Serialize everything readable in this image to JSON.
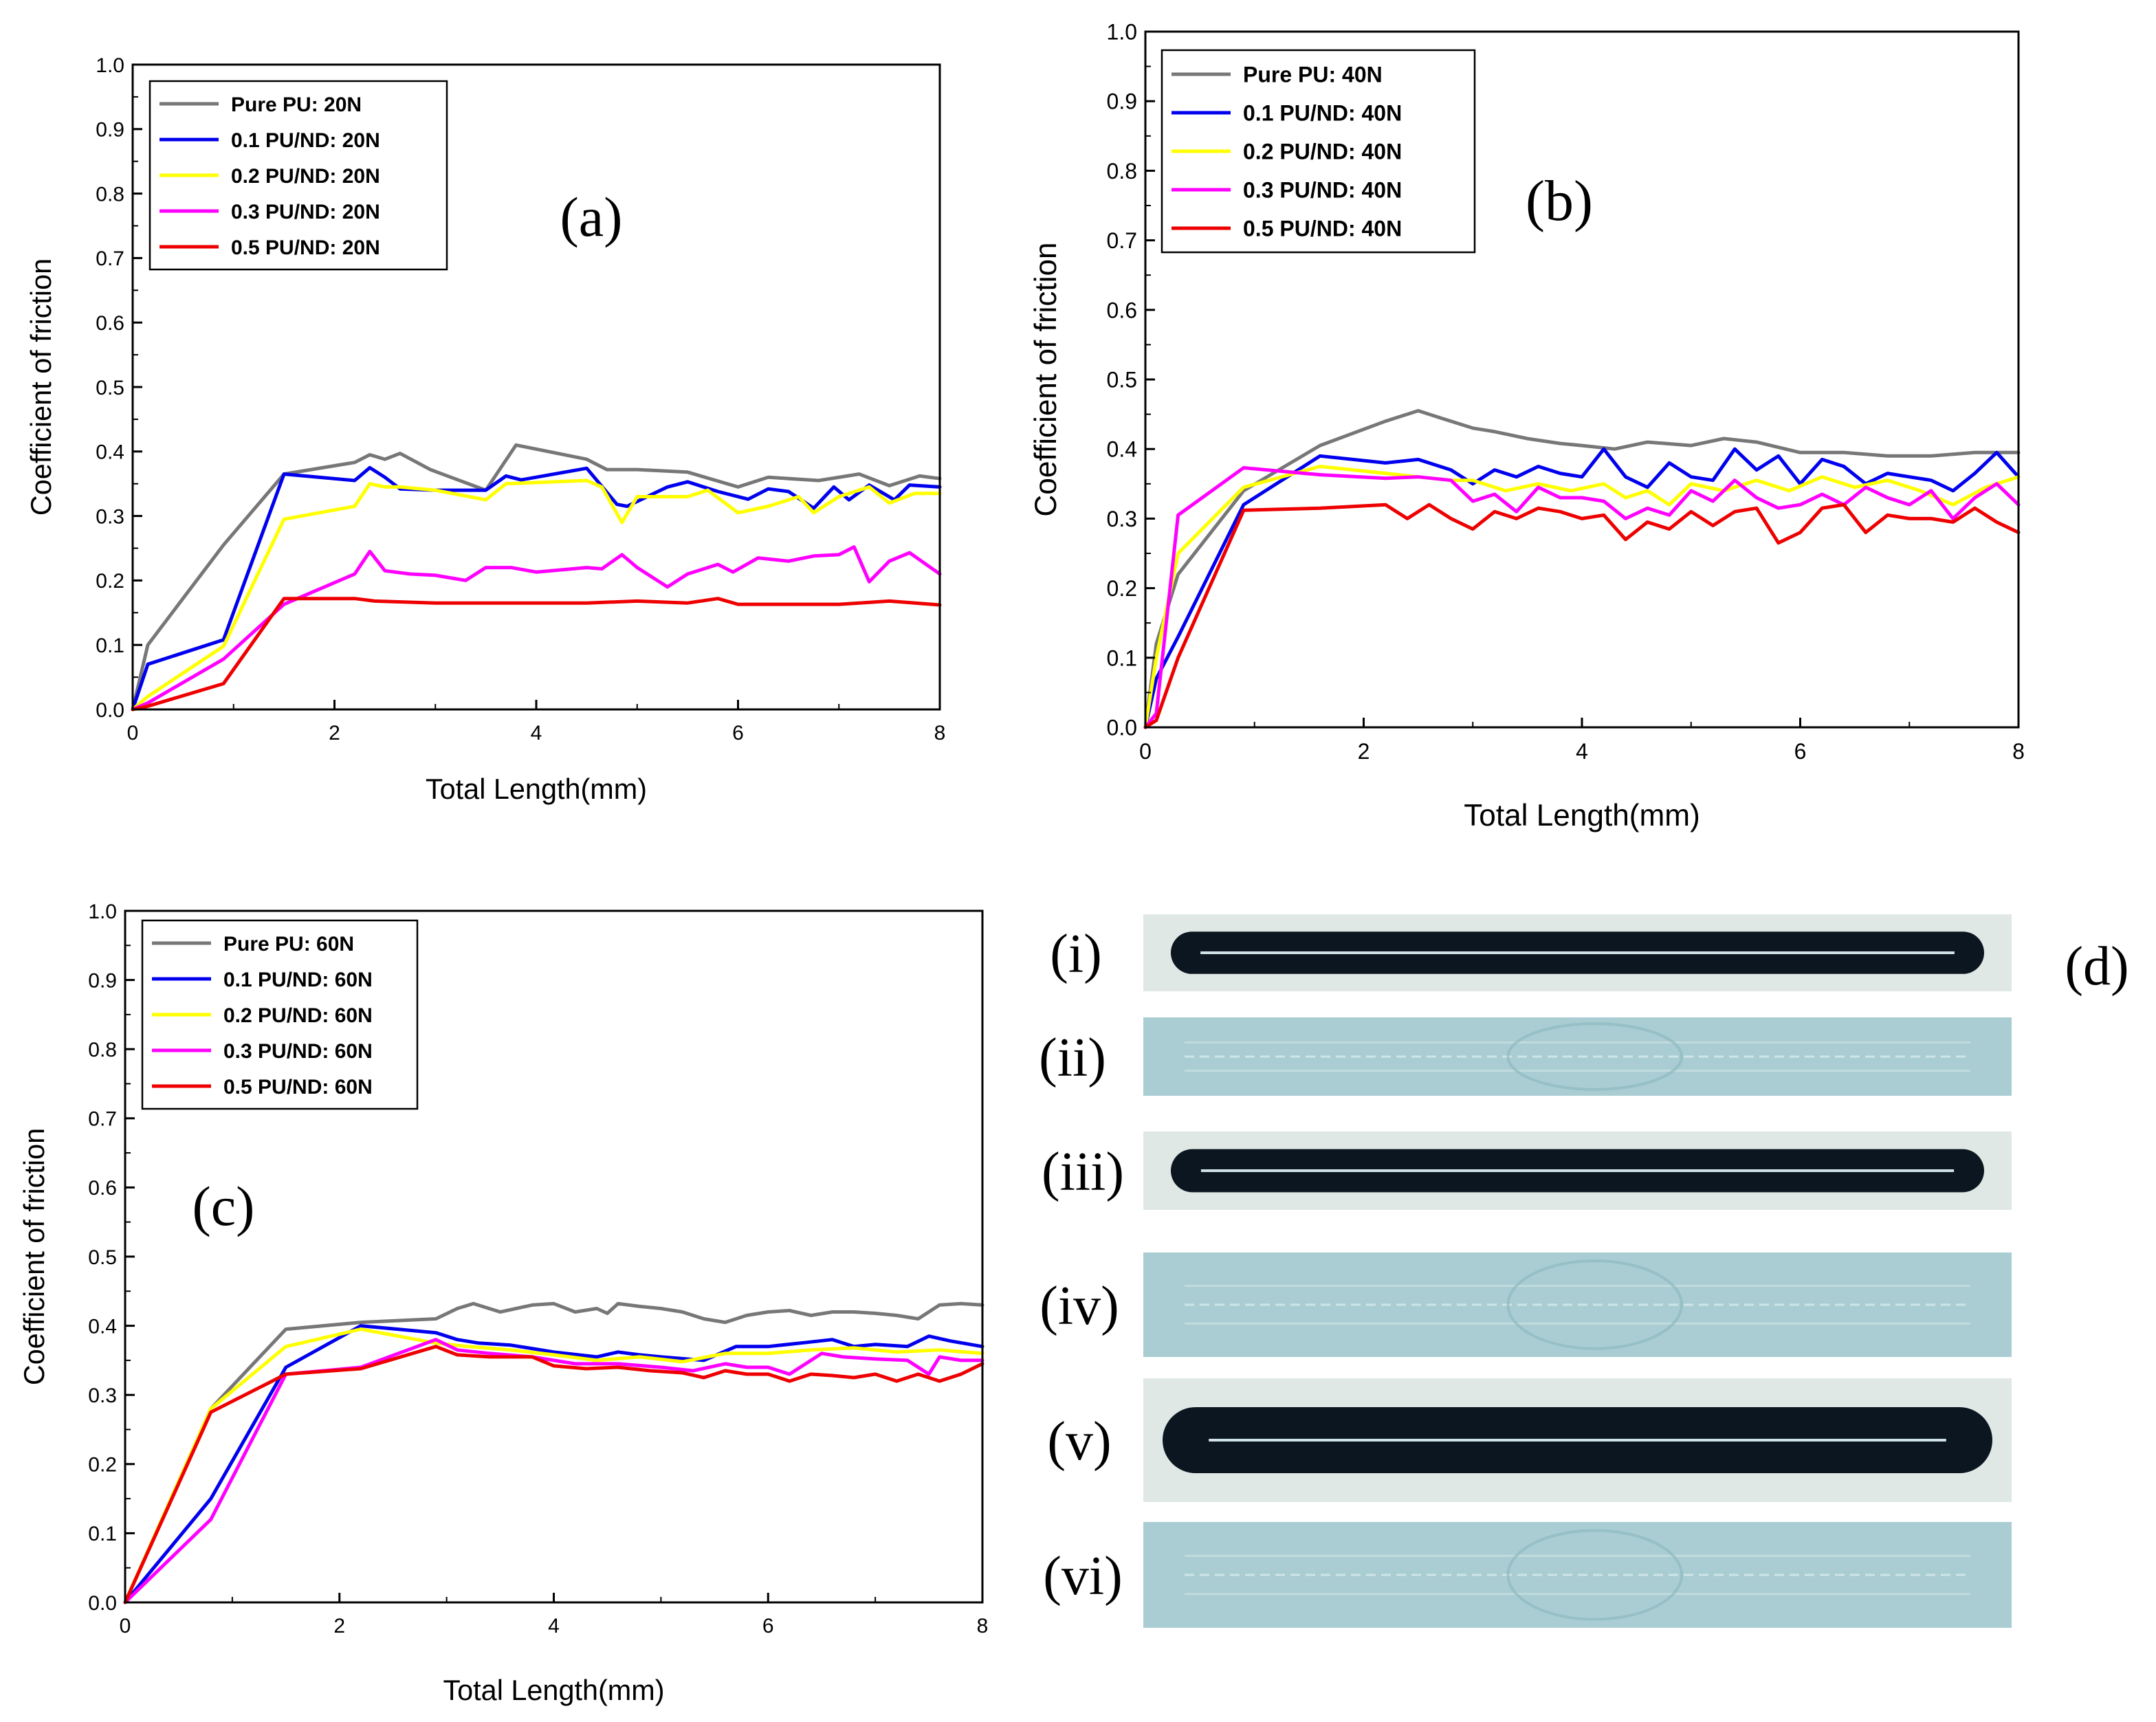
{
  "colors": {
    "pure": "#777777",
    "nd01": "#0000ee",
    "nd02": "#ffff00",
    "nd03": "#ff00ff",
    "nd05": "#ee0000",
    "axis": "#000000",
    "track_dark": "#0c1620",
    "strip_light": "#a9cdd2",
    "strip_dirty": "#dfe8e4"
  },
  "chart_data": [
    {
      "type": "line",
      "panel_label": "(a)",
      "xlabel": "Total Length(mm)",
      "ylabel": "Coefficient of friction",
      "xlim": [
        0,
        8
      ],
      "ylim": [
        0,
        1.0
      ],
      "x_ticks": [
        "0",
        "2",
        "4",
        "6",
        "8"
      ],
      "y_ticks": [
        "0.0",
        "0.1",
        "0.2",
        "0.3",
        "0.4",
        "0.5",
        "0.6",
        "0.7",
        "0.8",
        "0.9",
        "1.0"
      ],
      "legend_position": "top-left",
      "series": [
        {
          "name": "Pure PU: 20N",
          "color_key": "pure",
          "x": [
            0,
            0.15,
            0.9,
            1.5,
            2.2,
            2.35,
            2.5,
            2.65,
            2.95,
            3.5,
            3.8,
            4.5,
            4.7,
            5.0,
            5.5,
            6.0,
            6.3,
            6.8,
            7.2,
            7.5,
            7.8,
            8.0
          ],
          "y": [
            0.0,
            0.1,
            0.255,
            0.365,
            0.383,
            0.395,
            0.388,
            0.397,
            0.372,
            0.34,
            0.41,
            0.388,
            0.372,
            0.372,
            0.368,
            0.345,
            0.36,
            0.355,
            0.365,
            0.347,
            0.362,
            0.358
          ]
        },
        {
          "name": "0.1 PU/ND: 20N",
          "color_key": "nd01",
          "x": [
            0,
            0.15,
            0.9,
            1.5,
            2.2,
            2.35,
            2.5,
            2.65,
            3.0,
            3.5,
            3.7,
            3.85,
            4.5,
            4.8,
            4.9,
            5.3,
            5.5,
            5.8,
            6.1,
            6.3,
            6.5,
            6.75,
            6.95,
            7.1,
            7.3,
            7.55,
            7.7,
            8.0
          ],
          "y": [
            0.0,
            0.07,
            0.108,
            0.365,
            0.355,
            0.375,
            0.36,
            0.342,
            0.34,
            0.34,
            0.362,
            0.356,
            0.374,
            0.318,
            0.315,
            0.345,
            0.353,
            0.338,
            0.326,
            0.342,
            0.338,
            0.312,
            0.345,
            0.325,
            0.348,
            0.325,
            0.348,
            0.345
          ]
        },
        {
          "name": "0.2 PU/ND: 20N",
          "color_key": "nd02",
          "x": [
            0,
            0.15,
            0.9,
            1.5,
            2.2,
            2.35,
            2.5,
            2.65,
            3.0,
            3.5,
            3.7,
            4.5,
            4.65,
            4.85,
            5.0,
            5.5,
            5.7,
            6.0,
            6.3,
            6.6,
            6.75,
            7.0,
            7.3,
            7.5,
            7.75,
            8.0
          ],
          "y": [
            0.0,
            0.02,
            0.098,
            0.295,
            0.315,
            0.35,
            0.345,
            0.345,
            0.34,
            0.325,
            0.35,
            0.355,
            0.345,
            0.29,
            0.33,
            0.33,
            0.34,
            0.305,
            0.315,
            0.33,
            0.305,
            0.33,
            0.345,
            0.32,
            0.335,
            0.335
          ]
        },
        {
          "name": "0.3 PU/ND: 20N",
          "color_key": "nd03",
          "x": [
            0,
            0.15,
            0.9,
            1.5,
            2.2,
            2.35,
            2.5,
            2.75,
            3.0,
            3.3,
            3.5,
            3.75,
            4.0,
            4.5,
            4.65,
            4.85,
            5.0,
            5.3,
            5.5,
            5.8,
            5.95,
            6.2,
            6.5,
            6.75,
            7.0,
            7.15,
            7.3,
            7.5,
            7.7,
            8.0
          ],
          "y": [
            0.0,
            0.01,
            0.078,
            0.163,
            0.21,
            0.245,
            0.215,
            0.21,
            0.208,
            0.2,
            0.22,
            0.22,
            0.213,
            0.22,
            0.218,
            0.24,
            0.22,
            0.19,
            0.21,
            0.225,
            0.213,
            0.235,
            0.23,
            0.238,
            0.24,
            0.252,
            0.198,
            0.23,
            0.243,
            0.21
          ]
        },
        {
          "name": "0.5 PU/ND: 20N",
          "color_key": "nd05",
          "x": [
            0,
            0.15,
            0.9,
            1.5,
            2.2,
            2.4,
            3.0,
            4.0,
            4.5,
            5.0,
            5.5,
            5.8,
            6.0,
            6.5,
            7.0,
            7.5,
            8.0
          ],
          "y": [
            0.0,
            0.005,
            0.04,
            0.172,
            0.172,
            0.168,
            0.165,
            0.165,
            0.165,
            0.168,
            0.165,
            0.172,
            0.163,
            0.163,
            0.163,
            0.168,
            0.162
          ]
        }
      ]
    },
    {
      "type": "line",
      "panel_label": "(b)",
      "xlabel": "Total Length(mm)",
      "ylabel": "Coefficient of friction",
      "xlim": [
        0,
        8
      ],
      "ylim": [
        0,
        1.0
      ],
      "x_ticks": [
        "0",
        "2",
        "4",
        "6",
        "8"
      ],
      "y_ticks": [
        "0.0",
        "0.1",
        "0.2",
        "0.3",
        "0.4",
        "0.5",
        "0.6",
        "0.7",
        "0.8",
        "0.9",
        "1.0"
      ],
      "legend_position": "top-left",
      "series": [
        {
          "name": "Pure PU: 40N",
          "color_key": "pure",
          "x": [
            0,
            0.1,
            0.3,
            0.9,
            1.6,
            2.2,
            2.5,
            2.7,
            3.0,
            3.2,
            3.5,
            3.8,
            4.0,
            4.3,
            4.6,
            5.0,
            5.3,
            5.6,
            6.0,
            6.4,
            6.8,
            7.2,
            7.6,
            8.0
          ],
          "y": [
            0.0,
            0.12,
            0.22,
            0.34,
            0.405,
            0.44,
            0.455,
            0.445,
            0.43,
            0.425,
            0.415,
            0.408,
            0.405,
            0.4,
            0.41,
            0.405,
            0.415,
            0.41,
            0.395,
            0.395,
            0.39,
            0.39,
            0.395,
            0.395
          ]
        },
        {
          "name": "0.1 PU/ND: 40N",
          "color_key": "nd01",
          "x": [
            0,
            0.1,
            0.3,
            0.9,
            1.6,
            2.2,
            2.5,
            2.8,
            3.0,
            3.2,
            3.4,
            3.6,
            3.8,
            4.0,
            4.2,
            4.4,
            4.6,
            4.8,
            5.0,
            5.2,
            5.4,
            5.6,
            5.8,
            6.0,
            6.2,
            6.4,
            6.6,
            6.8,
            7.0,
            7.2,
            7.4,
            7.6,
            7.8,
            8.0
          ],
          "y": [
            0.0,
            0.07,
            0.13,
            0.32,
            0.39,
            0.38,
            0.385,
            0.37,
            0.35,
            0.37,
            0.36,
            0.375,
            0.365,
            0.36,
            0.4,
            0.36,
            0.345,
            0.38,
            0.36,
            0.355,
            0.4,
            0.37,
            0.39,
            0.35,
            0.385,
            0.375,
            0.35,
            0.365,
            0.36,
            0.355,
            0.34,
            0.365,
            0.395,
            0.36
          ]
        },
        {
          "name": "0.2 PU/ND: 40N",
          "color_key": "nd02",
          "x": [
            0,
            0.1,
            0.3,
            0.9,
            1.6,
            2.2,
            2.5,
            2.8,
            3.0,
            3.3,
            3.6,
            3.9,
            4.2,
            4.4,
            4.6,
            4.8,
            5.0,
            5.3,
            5.6,
            5.9,
            6.2,
            6.5,
            6.8,
            7.1,
            7.4,
            7.7,
            8.0
          ],
          "y": [
            0.0,
            0.1,
            0.25,
            0.345,
            0.375,
            0.365,
            0.36,
            0.355,
            0.355,
            0.34,
            0.35,
            0.34,
            0.35,
            0.33,
            0.34,
            0.32,
            0.35,
            0.34,
            0.355,
            0.34,
            0.36,
            0.345,
            0.355,
            0.34,
            0.32,
            0.345,
            0.36
          ]
        },
        {
          "name": "0.3 PU/ND: 40N",
          "color_key": "nd03",
          "x": [
            0,
            0.1,
            0.3,
            0.9,
            1.6,
            2.2,
            2.5,
            2.8,
            3.0,
            3.2,
            3.4,
            3.6,
            3.8,
            4.0,
            4.2,
            4.4,
            4.6,
            4.8,
            5.0,
            5.2,
            5.4,
            5.6,
            5.8,
            6.0,
            6.2,
            6.4,
            6.6,
            6.8,
            7.0,
            7.2,
            7.4,
            7.6,
            7.8,
            8.0
          ],
          "y": [
            0.0,
            0.02,
            0.305,
            0.373,
            0.363,
            0.358,
            0.36,
            0.355,
            0.325,
            0.335,
            0.31,
            0.345,
            0.33,
            0.33,
            0.325,
            0.3,
            0.315,
            0.305,
            0.34,
            0.325,
            0.355,
            0.33,
            0.315,
            0.32,
            0.335,
            0.32,
            0.345,
            0.33,
            0.32,
            0.34,
            0.3,
            0.33,
            0.35,
            0.32
          ]
        },
        {
          "name": "0.5 PU/ND: 40N",
          "color_key": "nd05",
          "x": [
            0,
            0.1,
            0.3,
            0.9,
            1.6,
            2.2,
            2.4,
            2.6,
            2.8,
            3.0,
            3.2,
            3.4,
            3.6,
            3.8,
            4.0,
            4.2,
            4.4,
            4.6,
            4.8,
            5.0,
            5.2,
            5.4,
            5.6,
            5.8,
            6.0,
            6.2,
            6.4,
            6.6,
            6.8,
            7.0,
            7.2,
            7.4,
            7.6,
            7.8,
            8.0
          ],
          "y": [
            0.0,
            0.01,
            0.1,
            0.312,
            0.315,
            0.32,
            0.3,
            0.32,
            0.3,
            0.285,
            0.31,
            0.3,
            0.315,
            0.31,
            0.3,
            0.305,
            0.27,
            0.295,
            0.285,
            0.31,
            0.29,
            0.31,
            0.315,
            0.265,
            0.28,
            0.315,
            0.32,
            0.28,
            0.305,
            0.3,
            0.3,
            0.295,
            0.315,
            0.295,
            0.28
          ]
        }
      ]
    },
    {
      "type": "line",
      "panel_label": "(c)",
      "xlabel": "Total Length(mm)",
      "ylabel": "Coefficient of friction",
      "xlim": [
        0,
        8
      ],
      "ylim": [
        0,
        1.0
      ],
      "x_ticks": [
        "0",
        "2",
        "4",
        "6",
        "8"
      ],
      "y_ticks": [
        "0.0",
        "0.1",
        "0.2",
        "0.3",
        "0.4",
        "0.5",
        "0.6",
        "0.7",
        "0.8",
        "0.9",
        "1.0"
      ],
      "legend_position": "top-left",
      "series": [
        {
          "name": "Pure PU: 60N",
          "color_key": "pure",
          "x": [
            0,
            0.8,
            1.5,
            2.2,
            2.9,
            3.1,
            3.25,
            3.5,
            3.8,
            4.0,
            4.2,
            4.4,
            4.5,
            4.6,
            4.8,
            5.0,
            5.2,
            5.4,
            5.6,
            5.8,
            6.0,
            6.2,
            6.4,
            6.6,
            6.8,
            7.0,
            7.2,
            7.4,
            7.6,
            7.8,
            8.0
          ],
          "y": [
            0.0,
            0.28,
            0.395,
            0.405,
            0.41,
            0.425,
            0.432,
            0.42,
            0.43,
            0.432,
            0.42,
            0.425,
            0.418,
            0.432,
            0.428,
            0.425,
            0.42,
            0.41,
            0.405,
            0.415,
            0.42,
            0.422,
            0.415,
            0.42,
            0.42,
            0.418,
            0.415,
            0.41,
            0.43,
            0.432,
            0.43
          ]
        },
        {
          "name": "0.1 PU/ND: 60N",
          "color_key": "nd01",
          "x": [
            0,
            0.8,
            1.5,
            2.2,
            2.9,
            3.1,
            3.3,
            3.6,
            4.0,
            4.4,
            4.6,
            4.8,
            5.0,
            5.4,
            5.7,
            6.0,
            6.3,
            6.6,
            6.8,
            7.0,
            7.3,
            7.5,
            7.7,
            8.0
          ],
          "y": [
            0.0,
            0.15,
            0.34,
            0.4,
            0.39,
            0.38,
            0.375,
            0.372,
            0.362,
            0.355,
            0.362,
            0.358,
            0.355,
            0.35,
            0.37,
            0.37,
            0.375,
            0.38,
            0.37,
            0.373,
            0.37,
            0.385,
            0.378,
            0.37
          ]
        },
        {
          "name": "0.2 PU/ND: 60N",
          "color_key": "nd02",
          "x": [
            0,
            0.8,
            1.5,
            2.2,
            2.9,
            3.2,
            3.6,
            4.0,
            4.4,
            4.8,
            5.2,
            5.6,
            6.0,
            6.4,
            6.8,
            7.2,
            7.6,
            8.0
          ],
          "y": [
            0.0,
            0.28,
            0.37,
            0.395,
            0.375,
            0.37,
            0.365,
            0.358,
            0.35,
            0.355,
            0.348,
            0.36,
            0.36,
            0.365,
            0.368,
            0.362,
            0.365,
            0.36
          ]
        },
        {
          "name": "0.3 PU/ND: 60N",
          "color_key": "nd03",
          "x": [
            0,
            0.8,
            1.5,
            2.2,
            2.9,
            3.1,
            3.4,
            3.8,
            4.2,
            4.6,
            5.0,
            5.3,
            5.6,
            5.8,
            6.0,
            6.2,
            6.5,
            6.7,
            7.0,
            7.3,
            7.5,
            7.6,
            7.8,
            8.0
          ],
          "y": [
            0.0,
            0.12,
            0.33,
            0.34,
            0.38,
            0.365,
            0.36,
            0.355,
            0.345,
            0.345,
            0.34,
            0.335,
            0.345,
            0.34,
            0.34,
            0.33,
            0.36,
            0.355,
            0.352,
            0.35,
            0.33,
            0.355,
            0.35,
            0.35
          ]
        },
        {
          "name": "0.5 PU/ND: 60N",
          "color_key": "nd05",
          "x": [
            0,
            0.8,
            1.5,
            2.2,
            2.9,
            3.1,
            3.4,
            3.8,
            4.0,
            4.3,
            4.6,
            4.9,
            5.2,
            5.4,
            5.6,
            5.8,
            6.0,
            6.2,
            6.4,
            6.6,
            6.8,
            7.0,
            7.2,
            7.4,
            7.6,
            7.8,
            8.0
          ],
          "y": [
            0.0,
            0.275,
            0.33,
            0.338,
            0.37,
            0.358,
            0.355,
            0.355,
            0.342,
            0.338,
            0.34,
            0.335,
            0.332,
            0.325,
            0.335,
            0.33,
            0.33,
            0.32,
            0.33,
            0.328,
            0.325,
            0.33,
            0.32,
            0.33,
            0.32,
            0.33,
            0.345
          ]
        }
      ]
    }
  ],
  "panel_d": {
    "label": "(d)",
    "strips": [
      {
        "label": "(i)",
        "kind": "dark-track"
      },
      {
        "label": "(ii)",
        "kind": "light"
      },
      {
        "label": "(iii)",
        "kind": "dark-track"
      },
      {
        "label": "(iv)",
        "kind": "light"
      },
      {
        "label": "(v)",
        "kind": "dark-track"
      },
      {
        "label": "(vi)",
        "kind": "light"
      }
    ]
  }
}
